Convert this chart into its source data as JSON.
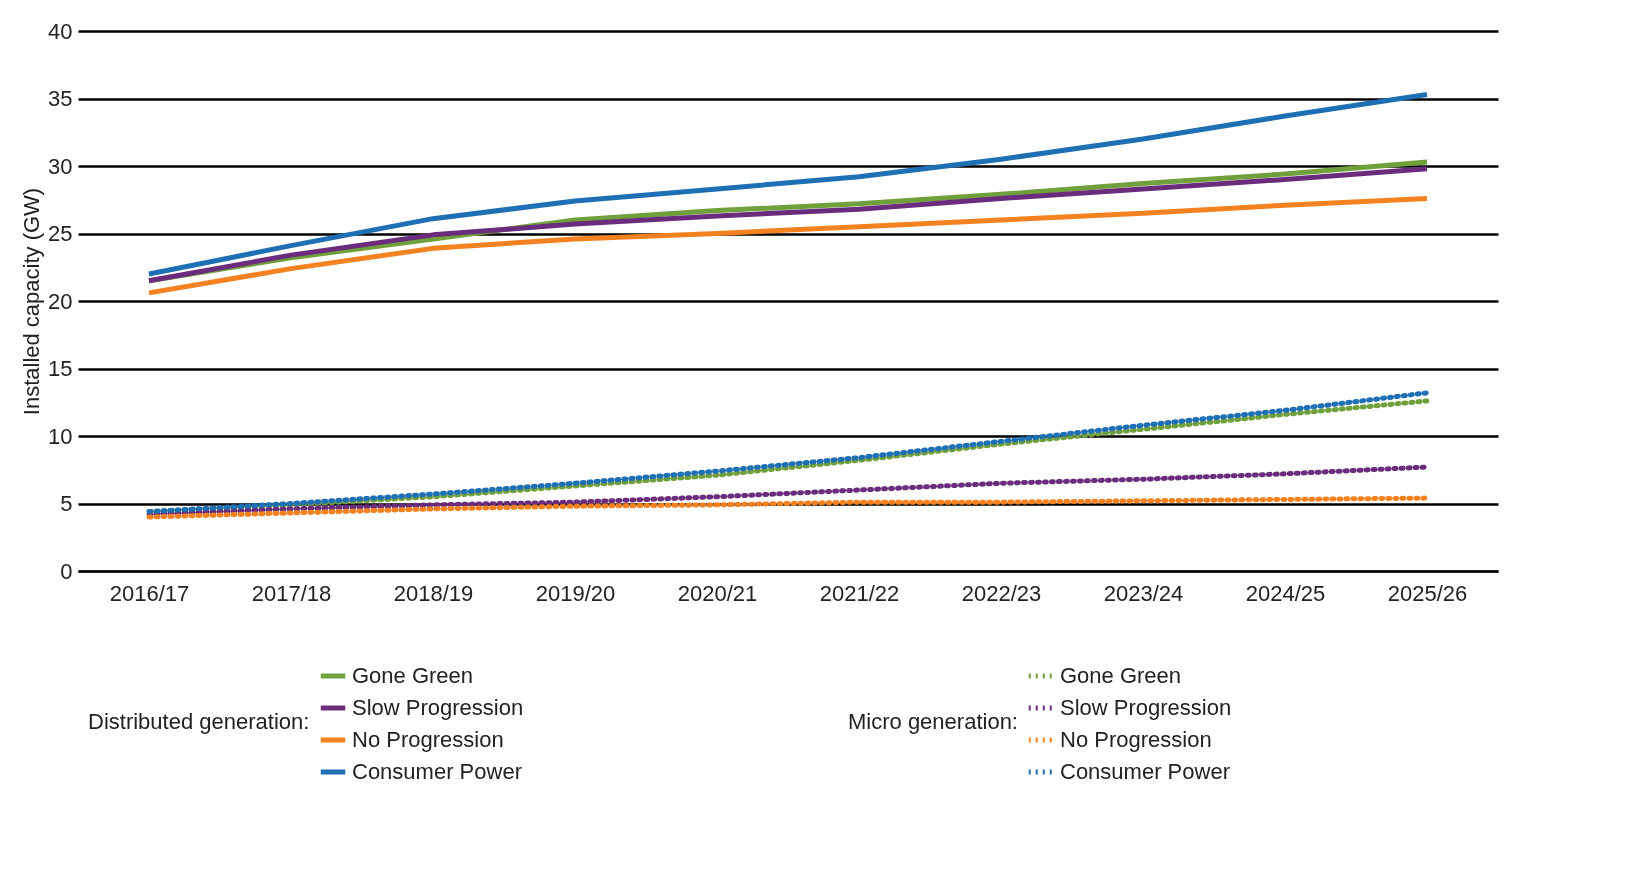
{
  "chart_data": {
    "type": "line",
    "ylabel": "Installed capacity (GW)",
    "categories": [
      "2016/17",
      "2017/18",
      "2018/19",
      "2019/20",
      "2020/21",
      "2021/22",
      "2022/23",
      "2023/24",
      "2024/25",
      "2025/26"
    ],
    "ylim": [
      0,
      40
    ],
    "yticks": [
      0,
      5,
      10,
      15,
      20,
      25,
      30,
      35,
      40
    ],
    "grid": "y",
    "legend": "bottom",
    "legend_title": [
      "Distributed generation:",
      "Micro generation:"
    ],
    "series": [
      {
        "name": "Gone Green",
        "color": "#70a03c",
        "line_style": "solid",
        "values": [
          21.5,
          23.2,
          24.6,
          26.0,
          26.7,
          27.2,
          27.9,
          28.7,
          29.4,
          30.3
        ]
      },
      {
        "name": "Slow Progression",
        "color": "#6b2c7d",
        "line_style": "solid",
        "values": [
          21.5,
          23.4,
          24.9,
          25.7,
          26.3,
          26.8,
          27.6,
          28.3,
          29.0,
          29.8
        ]
      },
      {
        "name": "No Progression",
        "color": "#f58220",
        "line_style": "solid",
        "values": [
          20.6,
          22.4,
          23.9,
          24.6,
          25.0,
          25.5,
          26.0,
          26.5,
          27.1,
          27.6
        ]
      },
      {
        "name": "Consumer Power",
        "color": "#1f6fb5",
        "line_style": "solid",
        "values": [
          22.0,
          24.1,
          26.1,
          27.4,
          28.3,
          29.2,
          30.5,
          32.0,
          33.7,
          35.3
        ]
      },
      {
        "name": "Gone Green",
        "color": "#70a03c",
        "line_style": "dotted",
        "values": [
          4.4,
          4.9,
          5.5,
          6.3,
          7.1,
          8.2,
          9.4,
          10.5,
          11.6,
          12.6
        ]
      },
      {
        "name": "Slow Progression",
        "color": "#6b2c7d",
        "line_style": "dotted",
        "values": [
          4.2,
          4.6,
          4.9,
          5.1,
          5.5,
          6.0,
          6.5,
          6.8,
          7.2,
          7.7
        ]
      },
      {
        "name": "No Progression",
        "color": "#f58220",
        "line_style": "dotted",
        "values": [
          4.0,
          4.3,
          4.6,
          4.8,
          4.9,
          5.1,
          5.1,
          5.2,
          5.3,
          5.4
        ]
      },
      {
        "name": "Consumer Power",
        "color": "#1f6fb5",
        "line_style": "dotted",
        "values": [
          4.4,
          5.0,
          5.7,
          6.5,
          7.4,
          8.4,
          9.6,
          10.8,
          11.9,
          13.2
        ]
      }
    ]
  }
}
